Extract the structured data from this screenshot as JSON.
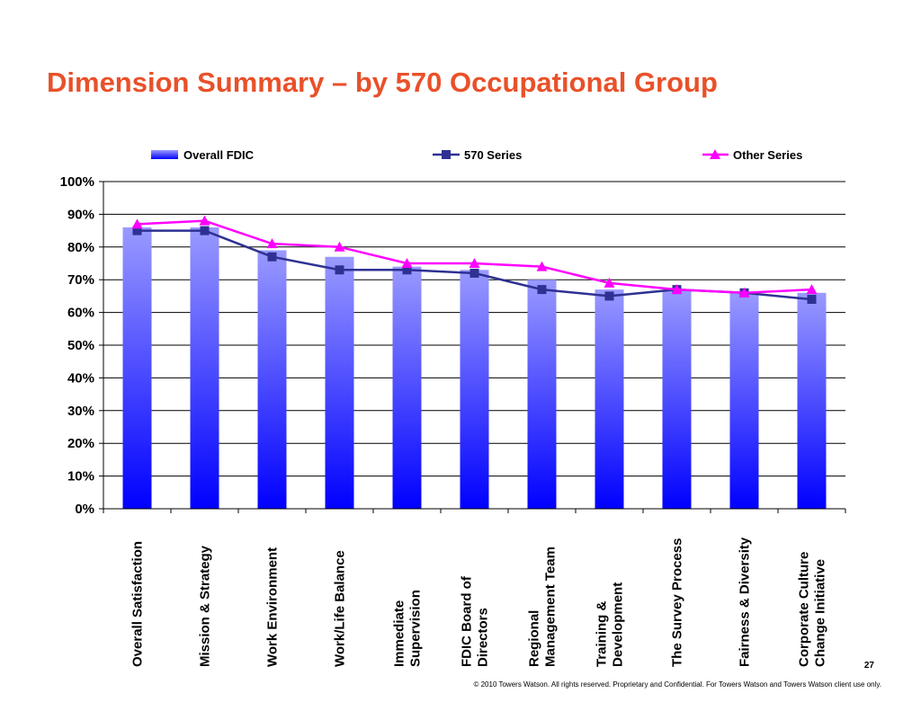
{
  "page": {
    "title": "Dimension Summary – by 570 Occupational Group",
    "page_number": "27",
    "footer": "© 2010 Towers Watson. All rights reserved. Proprietary and Confidential. For Towers Watson and Towers Watson client use only."
  },
  "colors": {
    "title": "#e8512a",
    "bar_top": "#9a9aff",
    "bar_bottom": "#0000ff",
    "series_570": "#2e3192",
    "series_other": "#ff00ff"
  },
  "chart_data": {
    "type": "bar",
    "categories": [
      "Overall Satisfaction",
      "Mission & Strategy",
      "Work Environment",
      "Work/Life Balance",
      "Immediate Supervision",
      "FDIC Board of Directors",
      "Regional Management Team",
      "Training & Development",
      "The Survey Process",
      "Fairness & Diversity",
      "Corporate Culture Change Initiative"
    ],
    "category_lines": [
      [
        "Overall Satisfaction"
      ],
      [
        "Mission & Strategy"
      ],
      [
        "Work Environment"
      ],
      [
        "Work/Life Balance"
      ],
      [
        "Immediate",
        "Supervision"
      ],
      [
        "FDIC Board of",
        "Directors"
      ],
      [
        "Regional",
        "Management Team"
      ],
      [
        "Training &",
        "Development"
      ],
      [
        "The Survey Process"
      ],
      [
        "Fairness & Diversity"
      ],
      [
        "Corporate Culture",
        "Change Initiative"
      ]
    ],
    "series": [
      {
        "name": "Overall FDIC",
        "type": "bar",
        "values": [
          86,
          86,
          79,
          77,
          74,
          73,
          70,
          67,
          67,
          66,
          66
        ]
      },
      {
        "name": "570 Series",
        "type": "line",
        "marker": "square",
        "values": [
          85,
          85,
          77,
          73,
          73,
          72,
          67,
          65,
          67,
          66,
          64
        ]
      },
      {
        "name": "Other Series",
        "type": "line",
        "marker": "triangle",
        "values": [
          87,
          88,
          81,
          80,
          75,
          75,
          74,
          69,
          67,
          66,
          67
        ]
      }
    ],
    "y_ticks": [
      "0%",
      "10%",
      "20%",
      "30%",
      "40%",
      "50%",
      "60%",
      "70%",
      "80%",
      "90%",
      "100%"
    ],
    "ylim": [
      0,
      100
    ],
    "grid": true,
    "legend_position": "top"
  }
}
